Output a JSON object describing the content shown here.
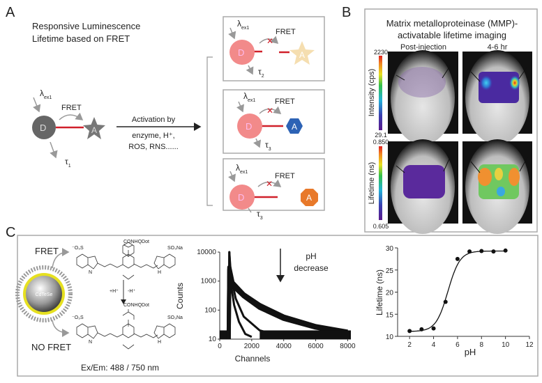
{
  "panel_a": {
    "label": "A",
    "title_line1": "Responsive Luminescence",
    "title_line2": "Lifetime based on FRET",
    "excitation": "λ",
    "excitation_sub": "ex1",
    "fret": "FRET",
    "donor": "D",
    "acceptor": "A",
    "tau": "τ",
    "tau1_sub": "1",
    "tau2_sub": "2",
    "tau3_sub": "3",
    "activation_line1": "Activation by",
    "activation_line2": "enzyme, H⁺,",
    "activation_line3": "ROS, RNS......",
    "colors": {
      "donor_off": "#666666",
      "donor_on": "#f28a8a",
      "acceptor_star_gray": "#777777",
      "acceptor_star_faded": "#f5deb0",
      "acceptor_hex": "#2d63b5",
      "acceptor_oct": "#e8792a",
      "linker": "#d0202a",
      "blocked_x": "#d0202a"
    }
  },
  "panel_b": {
    "label": "B",
    "title_line1": "Matrix metalloproteinase (MMP)-",
    "title_line2": "activatable lifetime imaging",
    "col1": "Post-injection",
    "col2": "4-6 hr",
    "intensity_label": "Intensity (cps)",
    "intensity_max": "2230",
    "intensity_min": "29.1",
    "lifetime_label": "Lifetime (ns)",
    "lifetime_max": "0.850",
    "lifetime_min": "0.605"
  },
  "panel_c": {
    "label": "C",
    "fret": "FRET",
    "no_fret": "NO FRET",
    "qd_core": "CdTeSe",
    "conhqdot": "CONHQDot",
    "so3": "⁻O₃S",
    "so3na": "SO₃Na",
    "protonate": "+H⁺",
    "deprotonate": "-H⁺",
    "nh": "H",
    "n_plus": "N",
    "ex_em": "Ex/Em: 488 / 750 nm",
    "arrow_text_line1": "pH",
    "arrow_text_line2": "decrease"
  },
  "chart_data": [
    {
      "type": "scatter",
      "title": "",
      "xlabel": "Channels",
      "ylabel": "Counts",
      "xlim": [
        0,
        8200
      ],
      "ylim": [
        10,
        10000
      ],
      "yscale": "log",
      "x_ticks": [
        "0",
        "2000",
        "4000",
        "6000",
        "8000"
      ],
      "y_ticks": [
        "10",
        "100",
        "1000",
        "10000"
      ],
      "annotation": "pH decrease",
      "series": [
        {
          "points": [
            [
              600,
              10000
            ],
            [
              700,
              800
            ],
            [
              900,
              150
            ],
            [
              1200,
              40
            ],
            [
              1600,
              15
            ],
            [
              2000,
              12
            ]
          ]
        },
        {
          "points": [
            [
              600,
              10000
            ],
            [
              700,
              1500
            ],
            [
              1000,
              250
            ],
            [
              1500,
              60
            ],
            [
              2500,
              20
            ],
            [
              3500,
              14
            ]
          ]
        },
        {
          "points": [
            [
              600,
              3000
            ],
            [
              800,
              900
            ],
            [
              1500,
              350
            ],
            [
              2500,
              150
            ],
            [
              4000,
              60
            ],
            [
              6000,
              28
            ],
            [
              8000,
              18
            ]
          ]
        },
        {
          "points": [
            [
              600,
              2500
            ],
            [
              800,
              700
            ],
            [
              1500,
              300
            ],
            [
              2500,
              120
            ],
            [
              4000,
              50
            ],
            [
              6000,
              25
            ],
            [
              8000,
              16
            ]
          ]
        }
      ]
    },
    {
      "type": "line",
      "title": "",
      "xlabel": "pH",
      "ylabel": "Lifetime (ns)",
      "xlim": [
        1,
        12
      ],
      "ylim": [
        10,
        30
      ],
      "x_ticks": [
        "2",
        "4",
        "6",
        "8",
        "10",
        "12"
      ],
      "y_ticks": [
        "10",
        "15",
        "20",
        "25",
        "30"
      ],
      "x": [
        2,
        3,
        4,
        5,
        6,
        7,
        8,
        9,
        10
      ],
      "y": [
        11.2,
        11.6,
        11.8,
        17.8,
        27.5,
        29.2,
        29.3,
        29.2,
        29.4
      ],
      "fit": "sigmoid"
    }
  ]
}
